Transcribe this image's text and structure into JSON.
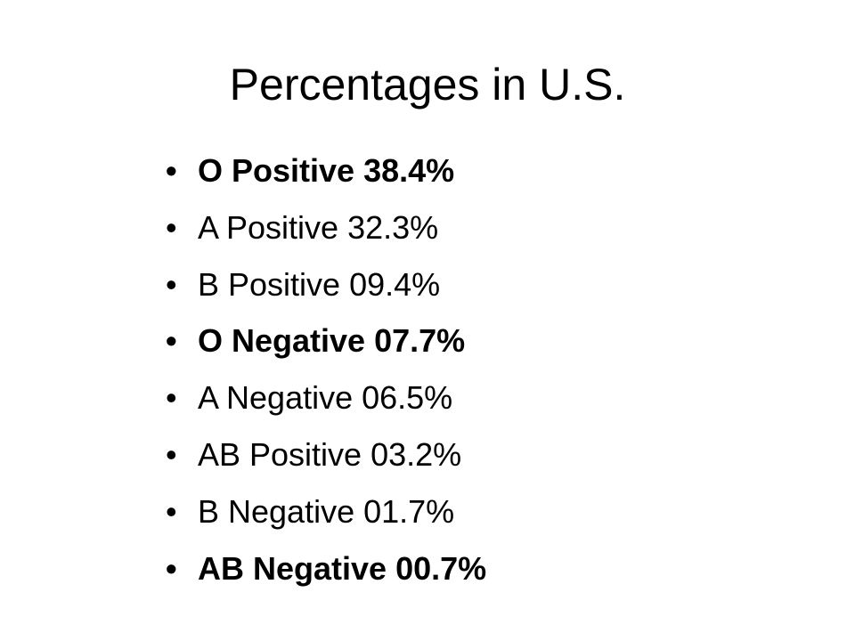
{
  "header": {
    "title": "Percentages in U.S."
  },
  "items": [
    "O Positive 38.4%",
    "A Positive 32.3%",
    "B Positive 09.4%",
    "O Negative 07.7%",
    "A Negative 06.5%",
    "AB Positive 03.2%",
    "B Negative 01.7%",
    "AB Negative 00.7%"
  ]
}
